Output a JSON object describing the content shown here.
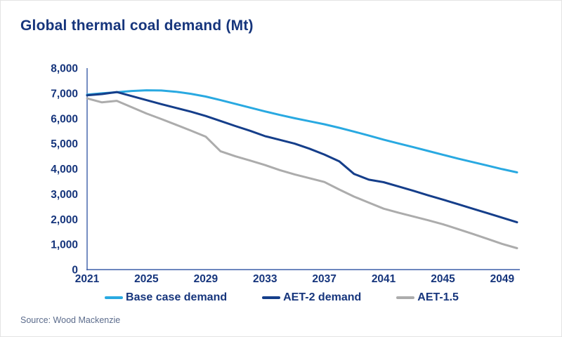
{
  "title": "Global thermal coal demand (Mt)",
  "source": "Source: Wood Mackenzie",
  "colors": {
    "title_text": "#16357C",
    "axis_line": "#3D5EA8",
    "tick_label": "#16357C",
    "source_text": "#5C6C8C",
    "base_case": "#29A9E1",
    "aet2": "#153E8A",
    "aet15": "#ACACAC"
  },
  "chart_data": {
    "type": "line",
    "title": "Global thermal coal demand (Mt)",
    "xlabel": "",
    "ylabel": "",
    "xlim": [
      2021,
      2050
    ],
    "ylim": [
      0,
      8000
    ],
    "grid": false,
    "legend_position": "bottom",
    "x": [
      2021,
      2022,
      2023,
      2024,
      2025,
      2026,
      2027,
      2028,
      2029,
      2030,
      2031,
      2032,
      2033,
      2034,
      2035,
      2036,
      2037,
      2038,
      2039,
      2040,
      2041,
      2042,
      2043,
      2044,
      2045,
      2046,
      2047,
      2048,
      2049,
      2050
    ],
    "x_ticks": [
      2021,
      2025,
      2029,
      2033,
      2037,
      2041,
      2045,
      2049
    ],
    "x_tick_labels": [
      "2021",
      "2025",
      "2029",
      "2033",
      "2037",
      "2041",
      "2045",
      "2049"
    ],
    "y_ticks": [
      0,
      1000,
      2000,
      3000,
      4000,
      5000,
      6000,
      7000,
      8000
    ],
    "y_tick_labels": [
      "0",
      "1,000",
      "2,000",
      "3,000",
      "4,000",
      "5,000",
      "6,000",
      "7,000",
      "8,000"
    ],
    "series": [
      {
        "name": "Base case demand",
        "color": "#29A9E1",
        "values": [
          6950,
          7000,
          7040,
          7090,
          7120,
          7110,
          7060,
          6980,
          6870,
          6730,
          6580,
          6430,
          6280,
          6140,
          6010,
          5890,
          5770,
          5630,
          5480,
          5320,
          5160,
          5010,
          4860,
          4710,
          4560,
          4410,
          4270,
          4130,
          3990,
          3860
        ]
      },
      {
        "name": "AET-2 demand",
        "color": "#153E8A",
        "values": [
          6920,
          6970,
          7050,
          6890,
          6730,
          6570,
          6420,
          6270,
          6100,
          5900,
          5700,
          5510,
          5300,
          5150,
          5000,
          4800,
          4570,
          4300,
          3800,
          3570,
          3470,
          3300,
          3130,
          2950,
          2780,
          2600,
          2420,
          2240,
          2060,
          1880
        ]
      },
      {
        "name": "AET-1.5",
        "color": "#ACACAC",
        "values": [
          6800,
          6640,
          6700,
          6450,
          6200,
          5980,
          5750,
          5520,
          5280,
          4700,
          4500,
          4330,
          4150,
          3950,
          3780,
          3630,
          3480,
          3180,
          2900,
          2660,
          2420,
          2260,
          2110,
          1960,
          1800,
          1610,
          1420,
          1220,
          1020,
          850
        ]
      }
    ]
  }
}
